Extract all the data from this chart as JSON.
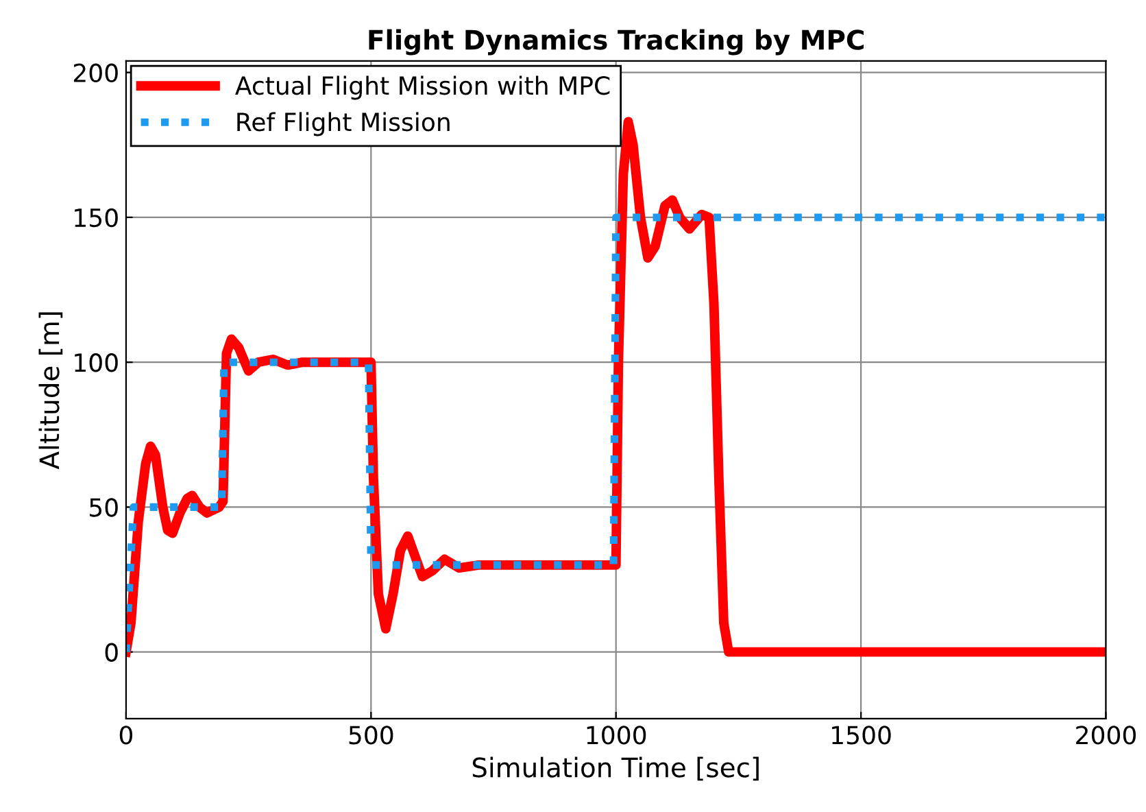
{
  "chart_data": {
    "type": "line",
    "title": "Flight Dynamics Tracking by MPC",
    "xlabel": "Simulation Time [sec]",
    "ylabel": "Altitude [m]",
    "xlim": [
      0,
      2000
    ],
    "ylim": [
      -23,
      204
    ],
    "xticks": [
      0,
      500,
      1000,
      1500,
      2000
    ],
    "yticks": [
      0,
      50,
      100,
      150,
      200
    ],
    "grid": true,
    "legend": "top left",
    "series": [
      {
        "name": "Actual Flight Mission with MPC",
        "color": "#ff0000",
        "line_style": "solid",
        "x": [
          0,
          10,
          25,
          40,
          50,
          60,
          75,
          85,
          95,
          110,
          125,
          135,
          150,
          165,
          190,
          198,
          205,
          215,
          230,
          250,
          270,
          300,
          330,
          360,
          500,
          505,
          515,
          530,
          545,
          560,
          575,
          590,
          605,
          625,
          650,
          680,
          720,
          1000,
          1005,
          1015,
          1025,
          1035,
          1050,
          1065,
          1080,
          1100,
          1115,
          1130,
          1150,
          1175,
          1190,
          1200,
          1210,
          1220,
          1230,
          2000
        ],
        "values": [
          0,
          10,
          45,
          65,
          71,
          68,
          50,
          42,
          41,
          48,
          53,
          54,
          50,
          48,
          50,
          52,
          103,
          108,
          105,
          97,
          100,
          101,
          99,
          100,
          100,
          60,
          20,
          8,
          20,
          35,
          40,
          33,
          26,
          28,
          32,
          29,
          30,
          30,
          100,
          165,
          183,
          175,
          150,
          136,
          140,
          154,
          156,
          150,
          146,
          151,
          150,
          120,
          60,
          10,
          0,
          0
        ]
      },
      {
        "name": "Ref Flight Mission",
        "color": "#1e9bf0",
        "line_style": "dotted",
        "x": [
          0,
          15,
          195,
          200,
          495,
          500,
          995,
          1000,
          2000
        ],
        "values": [
          0,
          50,
          50,
          100,
          100,
          30,
          30,
          150,
          150
        ]
      }
    ]
  }
}
